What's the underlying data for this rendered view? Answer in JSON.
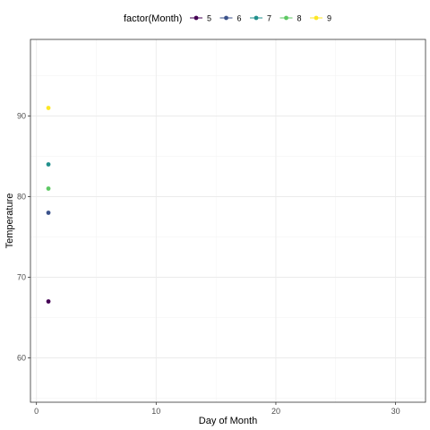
{
  "chart_data": {
    "type": "scatter",
    "xlabel": "Day of Month",
    "ylabel": "Temperature",
    "xlim": [
      -0.5,
      32.5
    ],
    "ylim": [
      54.5,
      99.5
    ],
    "x_ticks": [
      0,
      10,
      20,
      30
    ],
    "y_ticks": [
      60,
      70,
      80,
      90
    ],
    "grid": true,
    "legend": {
      "title": "factor(Month)",
      "position": "top"
    },
    "series": [
      {
        "name": "5",
        "color": "#440154",
        "x": [
          1
        ],
        "y": [
          67
        ]
      },
      {
        "name": "6",
        "color": "#3B528B",
        "x": [
          1
        ],
        "y": [
          78
        ]
      },
      {
        "name": "7",
        "color": "#21908C",
        "x": [
          1
        ],
        "y": [
          84
        ]
      },
      {
        "name": "8",
        "color": "#5DC863",
        "x": [
          1
        ],
        "y": [
          81
        ]
      },
      {
        "name": "9",
        "color": "#FDE725",
        "x": [
          1
        ],
        "y": [
          91
        ]
      }
    ]
  }
}
